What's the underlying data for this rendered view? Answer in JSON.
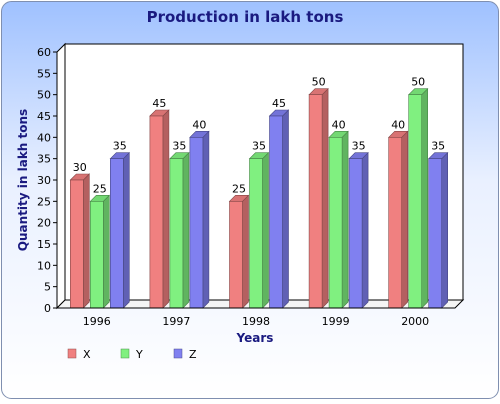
{
  "chart_data": {
    "type": "bar",
    "title": "Production in lakh tons",
    "xlabel": "Years",
    "ylabel": "Quantity in lakh tons",
    "categories": [
      "1996",
      "1997",
      "1998",
      "1999",
      "2000"
    ],
    "yticks": [
      "0",
      "5",
      "10",
      "15",
      "20",
      "25",
      "30",
      "35",
      "40",
      "45",
      "50",
      "55",
      "60"
    ],
    "ylim": [
      0,
      60
    ],
    "grid": false,
    "legend_position": "bottom-left",
    "series": [
      {
        "name": "X",
        "values": [
          30,
          45,
          25,
          50,
          40
        ],
        "color": "#f08080"
      },
      {
        "name": "Y",
        "values": [
          25,
          35,
          35,
          40,
          50
        ],
        "color": "#80f080"
      },
      {
        "name": "Z",
        "values": [
          35,
          40,
          45,
          35,
          35
        ],
        "color": "#8080f0"
      }
    ]
  },
  "colors": {
    "background_top": "#a9c7ff",
    "background_bottom": "#ffffff",
    "title_color": "#1a1a80"
  }
}
